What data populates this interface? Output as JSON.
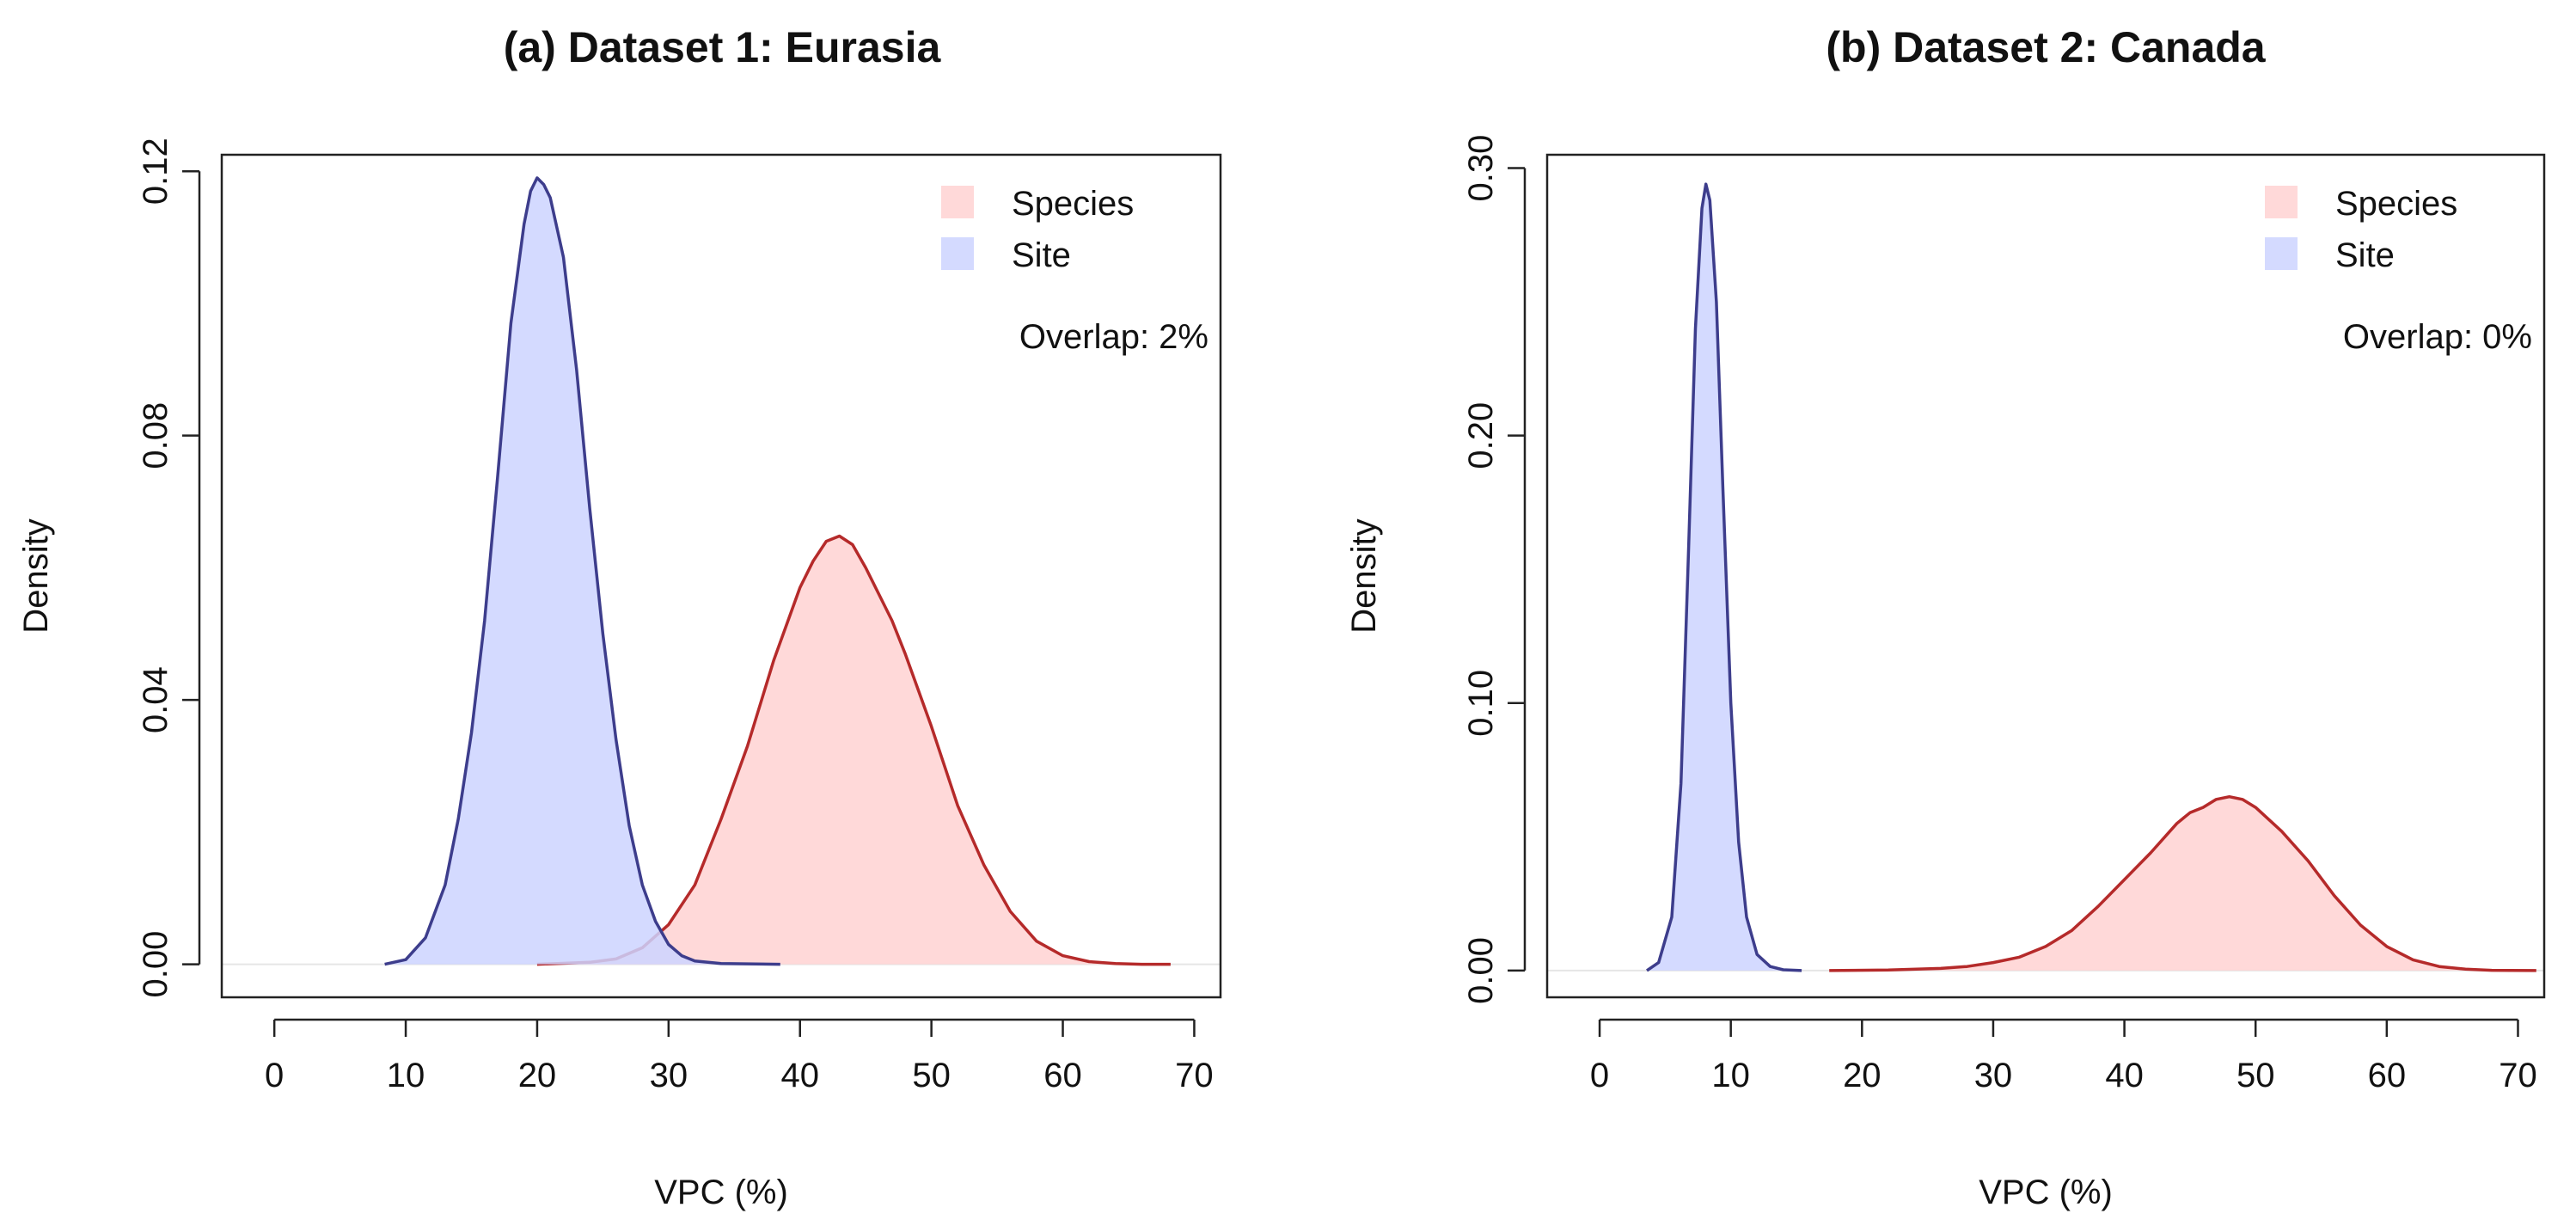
{
  "chart_data": [
    {
      "type": "area",
      "id": "a",
      "title": "(a) Dataset 1: Eurasia",
      "xlabel": "VPC (%)",
      "ylabel": "Density",
      "xlim": [
        -4,
        72
      ],
      "ylim": [
        -0.005,
        0.1225
      ],
      "xticks": [
        0,
        10,
        20,
        30,
        40,
        50,
        60,
        70
      ],
      "yticks": [
        0.0,
        0.04,
        0.08,
        0.12
      ],
      "ytick_labels": [
        "0.00",
        "0.04",
        "0.08",
        "0.12"
      ],
      "legend": {
        "position": "top-right",
        "entries": [
          "Species",
          "Site"
        ]
      },
      "annotation": "Overlap: 2%",
      "series": [
        {
          "name": "Species",
          "fill": "#ffd2d2",
          "fill_opacity": 0.85,
          "stroke": "#b52a2a",
          "points": [
            [
              20,
              0.0
            ],
            [
              24,
              0.0003
            ],
            [
              26,
              0.0008
            ],
            [
              28,
              0.0025
            ],
            [
              30,
              0.006
            ],
            [
              32,
              0.012
            ],
            [
              34,
              0.022
            ],
            [
              36,
              0.033
            ],
            [
              38,
              0.046
            ],
            [
              40,
              0.057
            ],
            [
              41,
              0.061
            ],
            [
              42,
              0.064
            ],
            [
              43,
              0.0648
            ],
            [
              44,
              0.0635
            ],
            [
              45,
              0.06
            ],
            [
              46,
              0.056
            ],
            [
              47,
              0.052
            ],
            [
              48,
              0.047
            ],
            [
              50,
              0.036
            ],
            [
              52,
              0.024
            ],
            [
              54,
              0.015
            ],
            [
              56,
              0.008
            ],
            [
              58,
              0.0035
            ],
            [
              60,
              0.0013
            ],
            [
              62,
              0.0004
            ],
            [
              64,
              0.0001
            ],
            [
              66,
              0.0
            ],
            [
              68.2,
              0.0
            ]
          ]
        },
        {
          "name": "Site",
          "fill": "#cdd3ff",
          "fill_opacity": 0.85,
          "stroke": "#3d3d8c",
          "points": [
            [
              8.4,
              0.0
            ],
            [
              10,
              0.0007
            ],
            [
              11.5,
              0.004
            ],
            [
              13,
              0.012
            ],
            [
              14,
              0.022
            ],
            [
              15,
              0.035
            ],
            [
              16,
              0.052
            ],
            [
              17,
              0.074
            ],
            [
              18,
              0.097
            ],
            [
              19,
              0.112
            ],
            [
              19.5,
              0.117
            ],
            [
              20,
              0.119
            ],
            [
              20.5,
              0.118
            ],
            [
              21,
              0.116
            ],
            [
              22,
              0.107
            ],
            [
              23,
              0.09
            ],
            [
              24,
              0.069
            ],
            [
              25,
              0.05
            ],
            [
              26,
              0.034
            ],
            [
              27,
              0.021
            ],
            [
              28,
              0.012
            ],
            [
              29,
              0.0065
            ],
            [
              30,
              0.003
            ],
            [
              31,
              0.0013
            ],
            [
              32,
              0.0005
            ],
            [
              34,
              0.0001
            ],
            [
              38.5,
              0.0
            ]
          ]
        }
      ]
    },
    {
      "type": "area",
      "id": "b",
      "title": "(b) Dataset 2: Canada",
      "xlabel": "VPC (%)",
      "ylabel": "Density",
      "xlim": [
        -4,
        72
      ],
      "ylim": [
        -0.01,
        0.305
      ],
      "xticks": [
        0,
        10,
        20,
        30,
        40,
        50,
        60,
        70
      ],
      "yticks": [
        0.0,
        0.1,
        0.2,
        0.3
      ],
      "ytick_labels": [
        "0.00",
        "0.10",
        "0.20",
        "0.30"
      ],
      "legend": {
        "position": "top-right",
        "entries": [
          "Species",
          "Site"
        ]
      },
      "annotation": "Overlap: 0%",
      "series": [
        {
          "name": "Species",
          "fill": "#ffd2d2",
          "fill_opacity": 0.85,
          "stroke": "#b52a2a",
          "points": [
            [
              17.5,
              0.0
            ],
            [
              22,
              0.0002
            ],
            [
              26,
              0.0008
            ],
            [
              28,
              0.0015
            ],
            [
              30,
              0.003
            ],
            [
              32,
              0.005
            ],
            [
              34,
              0.009
            ],
            [
              36,
              0.015
            ],
            [
              38,
              0.024
            ],
            [
              40,
              0.034
            ],
            [
              42,
              0.044
            ],
            [
              44,
              0.055
            ],
            [
              45,
              0.059
            ],
            [
              46,
              0.061
            ],
            [
              47,
              0.064
            ],
            [
              48,
              0.065
            ],
            [
              49,
              0.064
            ],
            [
              50,
              0.061
            ],
            [
              52,
              0.052
            ],
            [
              54,
              0.041
            ],
            [
              56,
              0.028
            ],
            [
              58,
              0.017
            ],
            [
              60,
              0.009
            ],
            [
              62,
              0.004
            ],
            [
              64,
              0.0015
            ],
            [
              66,
              0.0005
            ],
            [
              68,
              0.0001
            ],
            [
              71.4,
              0.0
            ]
          ]
        },
        {
          "name": "Site",
          "fill": "#cdd3ff",
          "fill_opacity": 0.85,
          "stroke": "#3d3d8c",
          "points": [
            [
              3.6,
              0.0
            ],
            [
              4.5,
              0.003
            ],
            [
              5.5,
              0.02
            ],
            [
              6.2,
              0.07
            ],
            [
              6.8,
              0.16
            ],
            [
              7.3,
              0.24
            ],
            [
              7.8,
              0.285
            ],
            [
              8.1,
              0.294
            ],
            [
              8.4,
              0.288
            ],
            [
              8.9,
              0.25
            ],
            [
              9.4,
              0.18
            ],
            [
              10,
              0.1
            ],
            [
              10.6,
              0.048
            ],
            [
              11.2,
              0.02
            ],
            [
              12,
              0.006
            ],
            [
              13,
              0.0015
            ],
            [
              14,
              0.0003
            ],
            [
              15.4,
              0.0
            ]
          ]
        }
      ]
    }
  ]
}
